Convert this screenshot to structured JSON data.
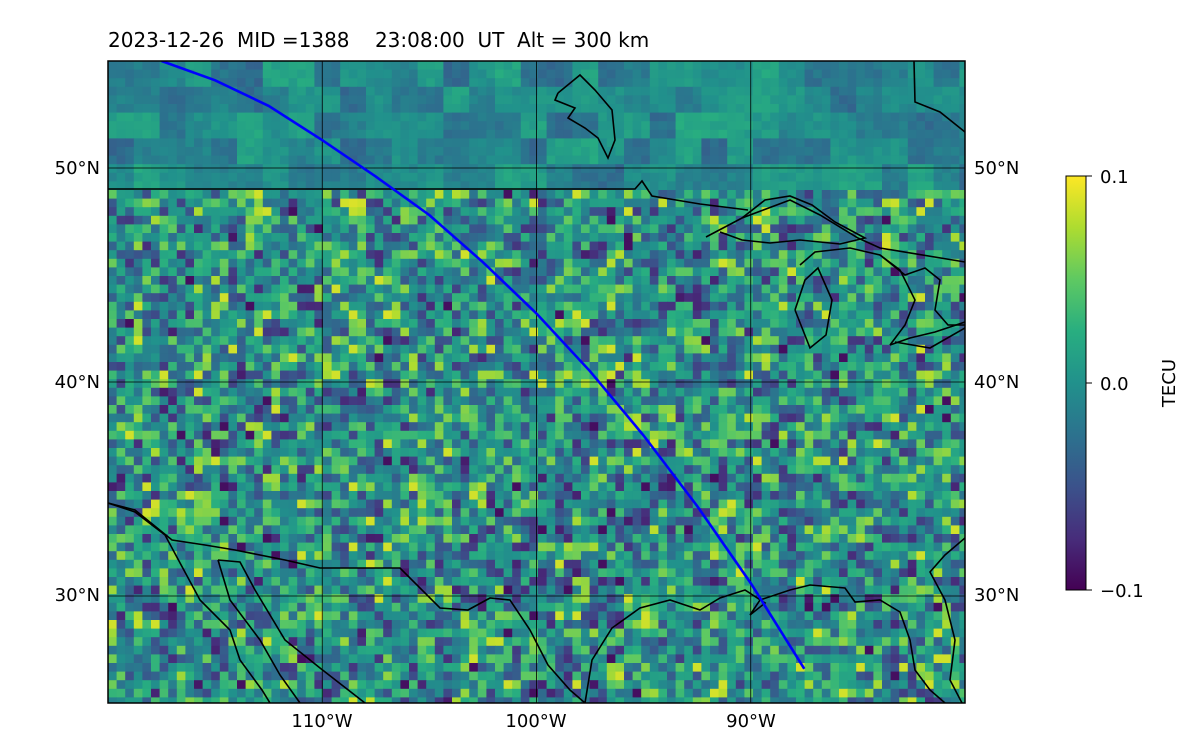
{
  "figure": {
    "title": "2023-12-26  MID =1388    23:08:00  UT  Alt = 300 km",
    "date": "2023-12-26",
    "mid": "MID =1388",
    "time": "23:08:00  UT",
    "altitude": "Alt = 300 km"
  },
  "map": {
    "lon_range": [
      -120,
      -80
    ],
    "lat_range": [
      25,
      55
    ],
    "meridian_labels": [
      "110°W",
      "100°W",
      "90°W"
    ],
    "meridian_values": [
      -110,
      -100,
      -90
    ],
    "parallel_labels": [
      "30°N",
      "40°N",
      "50°N"
    ],
    "parallel_values": [
      30,
      40,
      50
    ],
    "grid": true,
    "colormap": "viridis",
    "track_color": "#0000ff",
    "coast_color": "#000000"
  },
  "colorbar": {
    "label": "TECU",
    "min": -0.1,
    "max": 0.1,
    "tick_labels": [
      "0.1",
      "0.0",
      "−0.1"
    ],
    "tick_values": [
      0.1,
      0.0,
      -0.1
    ]
  },
  "chart_data": {
    "type": "heatmap",
    "title": "2023-12-26  MID =1388    23:08:00  UT  Alt = 300 km",
    "xlabel": "",
    "ylabel": "",
    "colorbar_label": "TECU",
    "vmin": -0.1,
    "vmax": 0.1,
    "xlim": [
      -120,
      -80
    ],
    "ylim": [
      25,
      55
    ],
    "satellite_track": {
      "lon": [
        -117.5,
        -115.0,
        -112.5,
        -110.0,
        -107.5,
        -105.0,
        -102.5,
        -100.0,
        -97.5,
        -95.0,
        -92.5,
        -90.0,
        -87.5
      ],
      "lat": [
        55.0,
        54.1,
        52.9,
        51.3,
        49.6,
        47.8,
        45.6,
        43.2,
        40.5,
        37.5,
        34.2,
        30.6,
        26.6
      ]
    }
  }
}
